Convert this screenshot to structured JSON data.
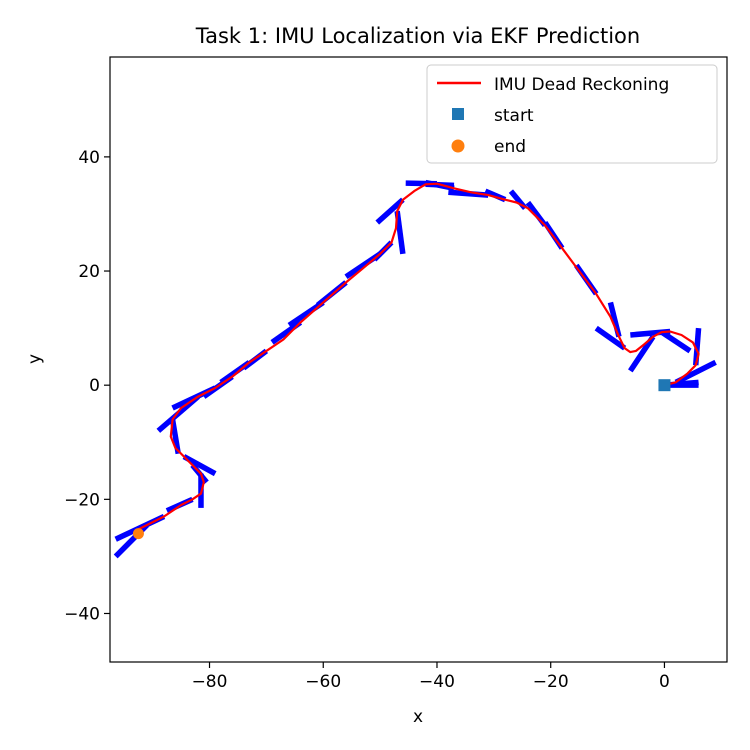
{
  "chart_data": {
    "type": "line",
    "title": "Task 1: IMU Localization via EKF Prediction",
    "xlabel": "x",
    "ylabel": "y",
    "xlim": [
      -97.5,
      11
    ],
    "ylim": [
      -48.5,
      57.5
    ],
    "xticks": [
      -80,
      -60,
      -40,
      -20,
      0
    ],
    "yticks": [
      -40,
      -20,
      0,
      20,
      40
    ],
    "xtick_labels": [
      "−80",
      "−60",
      "−40",
      "−20",
      "0"
    ],
    "ytick_labels": [
      "−40",
      "−20",
      "0",
      "20",
      "40"
    ],
    "grid": false,
    "aspect": "equal",
    "legend": {
      "position": "upper right",
      "entries": [
        {
          "label": "IMU Dead Reckoning",
          "marker": "line",
          "color": "#ff0000"
        },
        {
          "label": "start",
          "marker": "square",
          "color": "#1f77b4"
        },
        {
          "label": "end",
          "marker": "circle",
          "color": "#ff7f0e"
        }
      ]
    },
    "series": [
      {
        "name": "IMU Dead Reckoning",
        "color": "#ff0000",
        "x": [
          0,
          2,
          4,
          5.5,
          6,
          5,
          3,
          1,
          -0.5,
          -2,
          -3.5,
          -5,
          -6,
          -7,
          -8,
          -9.5,
          -12,
          -15,
          -18,
          -21,
          -24,
          -26,
          -28,
          -31,
          -34,
          -37,
          -40,
          -42,
          -44,
          -46,
          -47,
          -47.2,
          -48,
          -50,
          -53,
          -56,
          -60,
          -64,
          -67,
          -70,
          -73,
          -76,
          -79,
          -82,
          -85,
          -86.5,
          -86.8,
          -86,
          -84.5,
          -83,
          -81.5,
          -81,
          -81.5,
          -83,
          -85,
          -88,
          -91,
          -93
        ],
        "y": [
          0,
          0.5,
          2,
          3.5,
          5.5,
          7.5,
          8.8,
          9.4,
          9.3,
          8.5,
          7.2,
          6,
          5.8,
          6.5,
          8.5,
          12,
          16,
          20,
          24,
          28,
          31,
          32,
          32.5,
          33.3,
          33.8,
          34.5,
          35.3,
          35.2,
          34,
          32.5,
          30.5,
          27.5,
          25,
          23,
          20.5,
          18,
          14.5,
          11,
          8,
          6,
          4,
          1.5,
          -0.5,
          -2,
          -4,
          -6,
          -9,
          -11,
          -12.5,
          -14,
          -15.5,
          -17,
          -19,
          -20,
          -21,
          -23,
          -24.5,
          -25.5
        ]
      }
    ],
    "markers": {
      "start": {
        "x": 0,
        "y": 0,
        "color": "#1f77b4",
        "shape": "square"
      },
      "end": {
        "x": -92.5,
        "y": -26,
        "color": "#ff7f0e",
        "shape": "circle"
      }
    },
    "heading_marks": {
      "color": "#0000ff",
      "segments": [
        {
          "x1": 0,
          "y1": 0,
          "x2": 6,
          "y2": 0
        },
        {
          "x1": 0,
          "y1": 0,
          "x2": 6,
          "y2": 0.5
        },
        {
          "x1": 2,
          "y1": 0.5,
          "x2": 9,
          "y2": 4
        },
        {
          "x1": 5.5,
          "y1": 3.5,
          "x2": 6,
          "y2": 10
        },
        {
          "x1": 1,
          "y1": 9.4,
          "x2": -6,
          "y2": 8.8
        },
        {
          "x1": -0.5,
          "y1": 9.3,
          "x2": 4.5,
          "y2": 6
        },
        {
          "x1": -2,
          "y1": 8.5,
          "x2": -6,
          "y2": 2.5
        },
        {
          "x1": -7,
          "y1": 6.5,
          "x2": -12,
          "y2": 10
        },
        {
          "x1": -8,
          "y1": 8.5,
          "x2": -9.5,
          "y2": 14.5
        },
        {
          "x1": -12,
          "y1": 16,
          "x2": -15.5,
          "y2": 21
        },
        {
          "x1": -18,
          "y1": 24,
          "x2": -21,
          "y2": 28.5
        },
        {
          "x1": -21,
          "y1": 28,
          "x2": -24,
          "y2": 32
        },
        {
          "x1": -24.5,
          "y1": 31,
          "x2": -27,
          "y2": 34
        },
        {
          "x1": -28,
          "y1": 32.5,
          "x2": -31.5,
          "y2": 34
        },
        {
          "x1": -31,
          "y1": 33.3,
          "x2": -38,
          "y2": 33.8
        },
        {
          "x1": -37,
          "y1": 34.5,
          "x2": -42,
          "y2": 35.5
        },
        {
          "x1": -40,
          "y1": 35.3,
          "x2": -45.5,
          "y2": 35.4
        },
        {
          "x1": -42,
          "y1": 35.2,
          "x2": -37,
          "y2": 35
        },
        {
          "x1": -46,
          "y1": 32.5,
          "x2": -50.5,
          "y2": 28.5
        },
        {
          "x1": -47,
          "y1": 30.5,
          "x2": -46,
          "y2": 23
        },
        {
          "x1": -48,
          "y1": 25,
          "x2": -51,
          "y2": 22
        },
        {
          "x1": -50,
          "y1": 23,
          "x2": -56,
          "y2": 19
        },
        {
          "x1": -56,
          "y1": 18,
          "x2": -61,
          "y2": 14
        },
        {
          "x1": -60,
          "y1": 14.5,
          "x2": -66,
          "y2": 10.5
        },
        {
          "x1": -64,
          "y1": 11,
          "x2": -69,
          "y2": 7.5
        },
        {
          "x1": -70,
          "y1": 6,
          "x2": -74,
          "y2": 3
        },
        {
          "x1": -73,
          "y1": 4,
          "x2": -78,
          "y2": 0.5
        },
        {
          "x1": -76,
          "y1": 1.5,
          "x2": -81,
          "y2": -2
        },
        {
          "x1": -79,
          "y1": -0.5,
          "x2": -86.5,
          "y2": -4
        },
        {
          "x1": -82,
          "y1": -2,
          "x2": -89,
          "y2": -8
        },
        {
          "x1": -86.5,
          "y1": -6,
          "x2": -85.5,
          "y2": -12
        },
        {
          "x1": -84.5,
          "y1": -12.5,
          "x2": -79,
          "y2": -15.5
        },
        {
          "x1": -83,
          "y1": -14,
          "x2": -80.5,
          "y2": -17
        },
        {
          "x1": -81.5,
          "y1": -15.5,
          "x2": -81.5,
          "y2": -21.5
        },
        {
          "x1": -83,
          "y1": -20,
          "x2": -87.5,
          "y2": -22
        },
        {
          "x1": -88,
          "y1": -23,
          "x2": -96.5,
          "y2": -27
        },
        {
          "x1": -91,
          "y1": -24.5,
          "x2": -96.5,
          "y2": -30
        }
      ]
    }
  }
}
